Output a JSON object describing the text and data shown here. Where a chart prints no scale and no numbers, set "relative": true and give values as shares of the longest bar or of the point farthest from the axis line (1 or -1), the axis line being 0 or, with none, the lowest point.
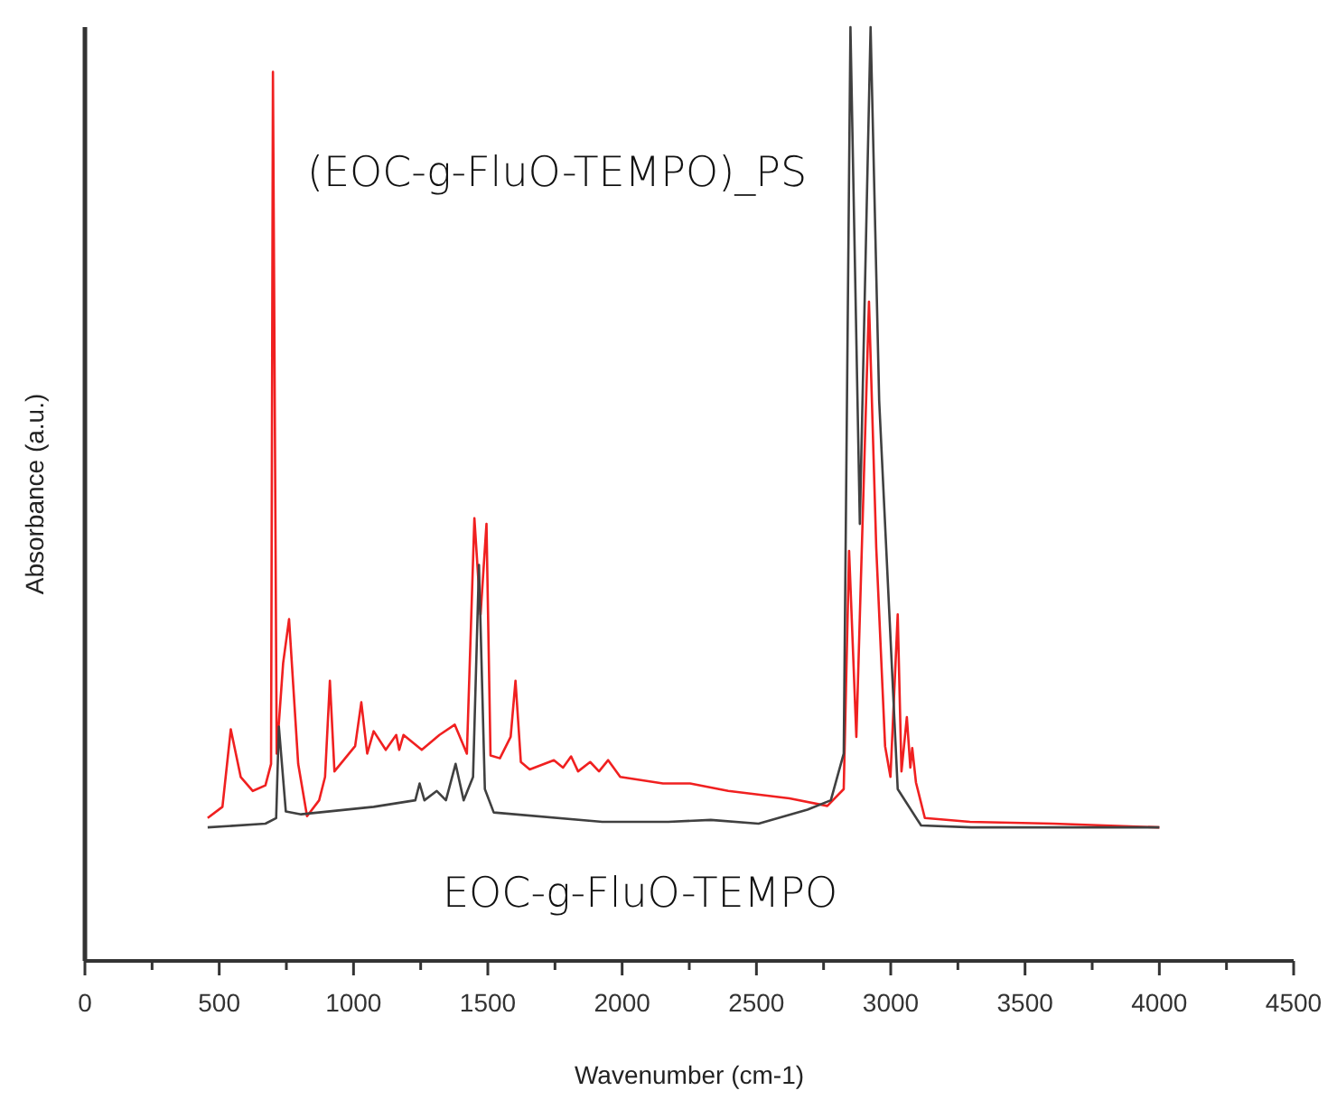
{
  "chart_data": {
    "type": "line",
    "relative": true,
    "xlabel": "Wavenumber (cm-1)",
    "ylabel": "Absorbance (a.u.)",
    "xlim": [
      0,
      4500
    ],
    "xticks": [
      0,
      {
        "value": 250,
        "label": null
      },
      500,
      {
        "value": 750,
        "label": null
      },
      1000,
      {
        "value": 1250,
        "label": null
      },
      1500,
      {
        "value": 1750,
        "label": null
      },
      2000,
      {
        "value": 2250,
        "label": null
      },
      2500,
      {
        "value": 2750,
        "label": null
      },
      3000,
      {
        "value": 3250,
        "label": null
      },
      3500,
      {
        "value": 3750,
        "label": null
      },
      4000,
      {
        "value": 4250,
        "label": null
      },
      4500
    ],
    "grid": false,
    "marker": "none",
    "line_style": "solid",
    "series": [
      {
        "name": "(EOC-g-FluO-TEMPO)_PS",
        "color": "#f02020",
        "x": [
          457,
          512,
          543,
          580,
          625,
          672,
          693,
          700,
          714,
          738,
          760,
          794,
          827,
          872,
          894,
          912,
          929,
          1006,
          1029,
          1051,
          1075,
          1120,
          1159,
          1170,
          1186,
          1254,
          1320,
          1377,
          1422,
          1450,
          1473,
          1495,
          1510,
          1545,
          1585,
          1603,
          1623,
          1656,
          1746,
          1780,
          1810,
          1836,
          1881,
          1914,
          1948,
          1993,
          2152,
          2253,
          2395,
          2623,
          2764,
          2825,
          2845,
          2872,
          2919,
          2946,
          2979,
          2999,
          3026,
          3040,
          3060,
          3073,
          3080,
          3094,
          3127,
          3295,
          3605,
          4000
        ],
        "values": [
          0.153,
          0.165,
          0.248,
          0.197,
          0.182,
          0.188,
          0.211,
          0.952,
          0.222,
          0.319,
          0.366,
          0.211,
          0.155,
          0.172,
          0.197,
          0.3,
          0.203,
          0.23,
          0.277,
          0.222,
          0.246,
          0.226,
          0.242,
          0.226,
          0.242,
          0.226,
          0.242,
          0.253,
          0.222,
          0.474,
          0.371,
          0.468,
          0.22,
          0.217,
          0.24,
          0.3,
          0.213,
          0.205,
          0.215,
          0.207,
          0.219,
          0.203,
          0.213,
          0.203,
          0.215,
          0.197,
          0.19,
          0.19,
          0.182,
          0.174,
          0.166,
          0.184,
          0.439,
          0.24,
          0.706,
          0.443,
          0.23,
          0.197,
          0.371,
          0.203,
          0.261,
          0.207,
          0.228,
          0.191,
          0.153,
          0.149,
          0.147,
          0.143
        ]
      },
      {
        "name": "EOC-g-FluO-TEMPO",
        "color": "#404040",
        "x": [
          457,
          672,
          712,
          722,
          748,
          805,
          1075,
          1230,
          1246,
          1264,
          1310,
          1344,
          1380,
          1410,
          1445,
          1467,
          1489,
          1522,
          1926,
          2172,
          2330,
          2508,
          2690,
          2777,
          2825,
          2850,
          2885,
          2925,
          2957,
          3026,
          3113,
          3300,
          3600,
          4000
        ],
        "values": [
          0.143,
          0.147,
          0.153,
          0.251,
          0.16,
          0.157,
          0.165,
          0.172,
          0.19,
          0.172,
          0.182,
          0.172,
          0.211,
          0.172,
          0.197,
          0.424,
          0.184,
          0.159,
          0.149,
          0.149,
          0.151,
          0.147,
          0.162,
          0.172,
          0.222,
          1.0,
          0.468,
          1.0,
          0.6,
          0.184,
          0.145,
          0.143,
          0.143,
          0.143
        ]
      }
    ]
  }
}
